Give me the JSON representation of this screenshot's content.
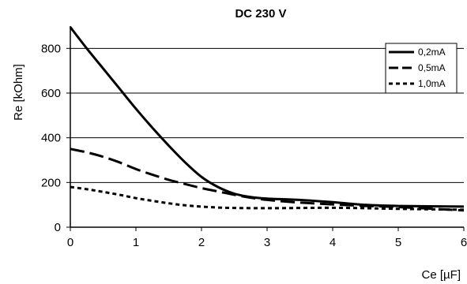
{
  "chart_data": {
    "type": "line",
    "title": "DC 230 V",
    "xlabel": "Ce [µF]",
    "ylabel": "Re [kOhm]",
    "xlim": [
      0,
      6
    ],
    "ylim": [
      0,
      900
    ],
    "xticks": [
      0,
      1,
      2,
      3,
      4,
      5,
      6
    ],
    "yticks": [
      0,
      200,
      400,
      600,
      800
    ],
    "grid": "horizontal",
    "legend_position": "top-right",
    "series": [
      {
        "name": "0,2mA",
        "style": "solid",
        "x": [
          0,
          0.25,
          0.5,
          0.75,
          1.0,
          1.25,
          1.5,
          1.75,
          2.0,
          2.25,
          2.5,
          2.75,
          3.0,
          3.5,
          4.0,
          4.5,
          5.0,
          6.0
        ],
        "y": [
          895,
          800,
          710,
          620,
          530,
          445,
          365,
          290,
          225,
          180,
          150,
          135,
          128,
          122,
          112,
          100,
          95,
          92
        ]
      },
      {
        "name": "0,5mA",
        "style": "long-dash",
        "x": [
          0,
          0.25,
          0.5,
          0.75,
          1.0,
          1.25,
          1.5,
          1.75,
          2.0,
          2.25,
          2.5,
          2.75,
          3.0,
          3.5,
          4.0,
          4.5,
          5.0,
          6.0
        ],
        "y": [
          350,
          335,
          315,
          290,
          260,
          235,
          212,
          193,
          175,
          160,
          145,
          132,
          122,
          110,
          102,
          95,
          90,
          75
        ]
      },
      {
        "name": "1,0mA",
        "style": "short-dash",
        "x": [
          0,
          0.25,
          0.5,
          0.75,
          1.0,
          1.25,
          1.5,
          1.75,
          2.0,
          2.25,
          2.5,
          3.0,
          3.5,
          4.0,
          4.5,
          5.0,
          6.0
        ],
        "y": [
          180,
          170,
          158,
          145,
          130,
          118,
          107,
          98,
          92,
          88,
          86,
          85,
          86,
          87,
          85,
          82,
          78
        ]
      }
    ]
  }
}
